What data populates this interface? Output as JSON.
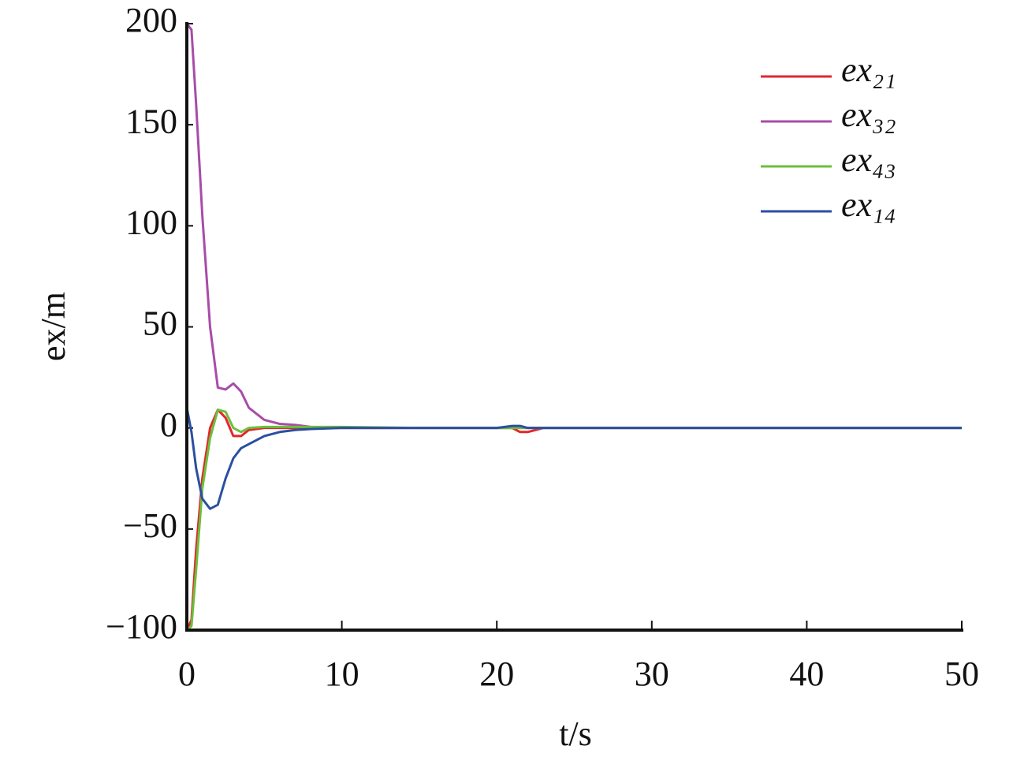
{
  "chart_data": {
    "type": "line",
    "x_label": "t/s",
    "y_label": "ex/m",
    "x": [
      0,
      0.3,
      0.6,
      1,
      1.5,
      2,
      2.5,
      3,
      3.5,
      4,
      5,
      6,
      7,
      8,
      10,
      15,
      20,
      21,
      21.5,
      22,
      23,
      30,
      40,
      50
    ],
    "series": [
      {
        "name": "ex₂₁",
        "color": "#e3262b",
        "values": [
          -100,
          -95,
          -60,
          -25,
          0,
          9,
          5,
          -4,
          -4,
          -1,
          0,
          0,
          0,
          0,
          0,
          0,
          0,
          0,
          -2,
          -2,
          0,
          0,
          0,
          0
        ]
      },
      {
        "name": "ex₃₂",
        "color": "#a84ca8",
        "values": [
          200,
          197,
          160,
          105,
          50,
          20,
          19,
          22,
          18,
          10,
          4,
          2,
          1.5,
          0.5,
          0,
          0,
          0,
          0,
          0,
          0,
          0,
          0,
          0,
          0
        ]
      },
      {
        "name": "ex₄₃",
        "color": "#6cbf3c",
        "values": [
          -100,
          -98,
          -70,
          -30,
          -5,
          9,
          8,
          0,
          -2,
          0,
          0.5,
          0.5,
          0.5,
          0.5,
          0.5,
          0,
          0,
          0,
          0,
          0,
          0,
          0,
          0,
          0
        ]
      },
      {
        "name": "ex₁₄",
        "color": "#2b4fa0",
        "values": [
          10,
          -2,
          -20,
          -35,
          -40,
          -38,
          -25,
          -15,
          -10,
          -8,
          -4,
          -2,
          -1,
          -0.5,
          0,
          0,
          0,
          1,
          1,
          0,
          0,
          0,
          0,
          0
        ]
      }
    ],
    "xlim": [
      0,
      50
    ],
    "xticks": [
      0,
      10,
      20,
      30,
      40,
      50
    ],
    "ylim": [
      -100,
      200
    ],
    "yticks": [
      {
        "value": -100,
        "label": "−100"
      },
      {
        "value": -50,
        "label": "−50"
      },
      0,
      50,
      100,
      150,
      200
    ],
    "grid": false,
    "legend": "upper right"
  }
}
